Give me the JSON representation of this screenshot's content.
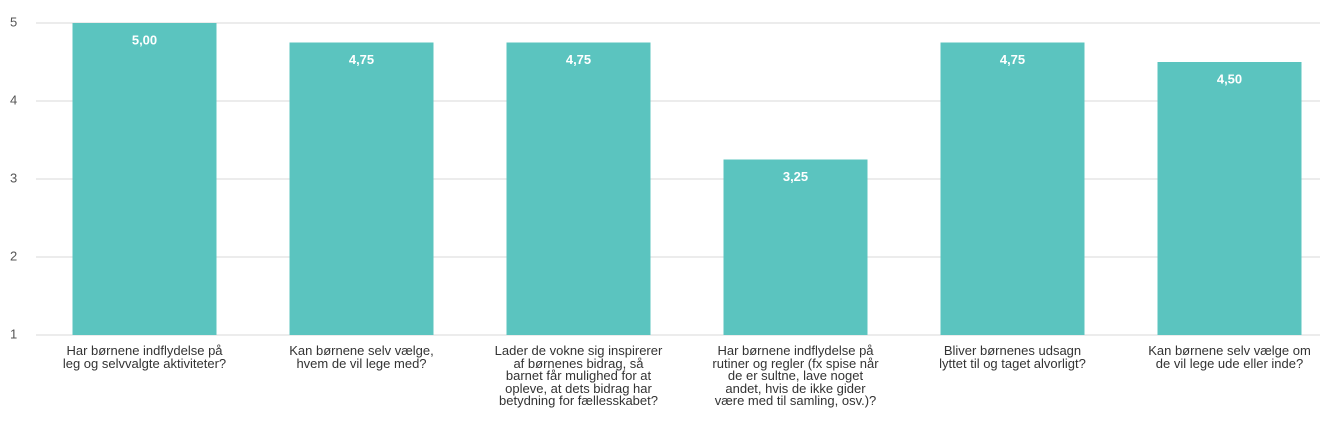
{
  "chart_data": {
    "type": "bar",
    "categories": [
      "Har børnene indflydelse på leg og selvvalgte aktiviteter?",
      "Kan børnene selv vælge, hvem de vil lege med?",
      "Lader de vokne sig inspirerer af børnenes bidrag, så barnet får mulighed for at opleve, at dets bidrag har betydning for fællesskabet?",
      "Har børnene indflydelse på rutiner og regler (fx spise når de er sultne, lave noget andet, hvis de ikke gider være med til samling, osv.)?",
      "Bliver børnenes udsagn lyttet til og taget alvorligt?",
      "Kan børnene selv vælge om de vil lege ude eller inde?"
    ],
    "values": [
      5,
      4.75,
      4.75,
      3.25,
      4.75,
      4.5
    ],
    "value_labels": [
      "5,00",
      "4,75",
      "4,75",
      "3,25",
      "4,75",
      "4,50"
    ],
    "color": "#5bc4bf",
    "ylim": [
      1,
      5
    ],
    "yticks": [
      1,
      2,
      3,
      4,
      5
    ],
    "grid": true
  }
}
